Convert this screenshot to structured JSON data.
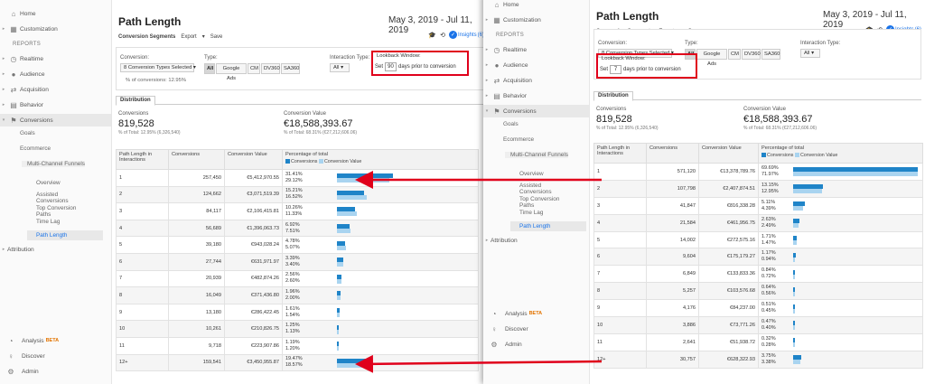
{
  "colors": {
    "accent": "#1a73e8",
    "bar_primary": "#1f84c8",
    "bar_secondary": "#a9d4f0",
    "highlight_red": "#e0001b",
    "beta_orange": "#e37400"
  },
  "panels": [
    {
      "sidebar": {
        "top_items": [
          {
            "label": "Home",
            "icon": "home-icon"
          },
          {
            "label": "Customization",
            "icon": "dashboard-icon"
          }
        ],
        "section_label": "REPORTS",
        "report_items": [
          {
            "label": "Realtime",
            "icon": "clock-icon"
          },
          {
            "label": "Audience",
            "icon": "person-icon"
          },
          {
            "label": "Acquisition",
            "icon": "acquisition-icon"
          },
          {
            "label": "Behavior",
            "icon": "behavior-icon"
          },
          {
            "label": "Conversions",
            "icon": "flag-icon"
          }
        ],
        "conversion_children": [
          "Goals",
          "Ecommerce",
          "Multi-Channel Funnels"
        ],
        "mcf_children": [
          "Overview",
          "Assisted Conversions",
          "Top Conversion Paths",
          "Time Lag",
          "Path Length"
        ],
        "after_item": "Attribution",
        "footer": [
          {
            "label": "Analysis",
            "badge": "BETA",
            "icon": "analysis-icon"
          },
          {
            "label": "Discover",
            "icon": "lightbulb-icon"
          },
          {
            "label": "Admin",
            "icon": "gear-icon"
          }
        ]
      },
      "report": {
        "title": "Path Length",
        "date_range": "May 3, 2019 - Jul 11, 2019",
        "toolbar": {
          "segments": "Conversion Segments",
          "export": "Export",
          "save": "Save",
          "insights": "Insights",
          "insights_count": "6"
        },
        "filters": {
          "conversion_label": "Conversion:",
          "conversion_value": "8 Conversion Types Selected",
          "pct_conversions": "% of conversions: 12.95%",
          "type_label": "Type:",
          "type_buttons": [
            "All",
            "Google Ads",
            "CM",
            "DV360",
            "SA360"
          ],
          "interaction_label": "Interaction Type:",
          "interaction_value": "All",
          "lookback_label": "Lookback Window:",
          "lookback_set": "Set",
          "lookback_days": "90",
          "lookback_suffix": "days prior to conversion"
        },
        "tab": "Distribution",
        "scorecards": [
          {
            "label": "Conversions",
            "value": "819,528",
            "sub": "% of Total: 12.95% (6,326,540)"
          },
          {
            "label": "Conversion Value",
            "value": "€18,588,393.67",
            "sub": "% of Total: 68.31% (€27,212,606.06)"
          }
        ],
        "table": {
          "headers": [
            "Path Length in Interactions",
            "Conversions",
            "Conversion Value",
            "Percentage of total"
          ],
          "legend": [
            "Conversions",
            "Conversion Value"
          ],
          "rows": [
            {
              "len": "1",
              "conv": "257,450",
              "value": "€5,412,970.55",
              "p1": "31.41%",
              "p2": "29.12%",
              "f1": 0.3141,
              "f2": 0.2912
            },
            {
              "len": "2",
              "conv": "124,662",
              "value": "€3,071,519.39",
              "p1": "15.21%",
              "p2": "16.52%",
              "f1": 0.1521,
              "f2": 0.1652
            },
            {
              "len": "3",
              "conv": "84,117",
              "value": "€2,106,415.81",
              "p1": "10.26%",
              "p2": "11.33%",
              "f1": 0.1026,
              "f2": 0.1133
            },
            {
              "len": "4",
              "conv": "56,689",
              "value": "€1,396,063.73",
              "p1": "6.92%",
              "p2": "7.51%",
              "f1": 0.0692,
              "f2": 0.0751
            },
            {
              "len": "5",
              "conv": "39,180",
              "value": "€943,028.24",
              "p1": "4.78%",
              "p2": "5.07%",
              "f1": 0.0478,
              "f2": 0.0507
            },
            {
              "len": "6",
              "conv": "27,744",
              "value": "€631,971.97",
              "p1": "3.39%",
              "p2": "3.40%",
              "f1": 0.0339,
              "f2": 0.034
            },
            {
              "len": "7",
              "conv": "20,939",
              "value": "€482,874.26",
              "p1": "2.56%",
              "p2": "2.60%",
              "f1": 0.0256,
              "f2": 0.026
            },
            {
              "len": "8",
              "conv": "16,049",
              "value": "€371,436.80",
              "p1": "1.96%",
              "p2": "2.00%",
              "f1": 0.0196,
              "f2": 0.02
            },
            {
              "len": "9",
              "conv": "13,180",
              "value": "€286,422.45",
              "p1": "1.61%",
              "p2": "1.54%",
              "f1": 0.0161,
              "f2": 0.0154
            },
            {
              "len": "10",
              "conv": "10,261",
              "value": "€210,826.75",
              "p1": "1.25%",
              "p2": "1.13%",
              "f1": 0.0125,
              "f2": 0.0113
            },
            {
              "len": "11",
              "conv": "9,718",
              "value": "€223,907.86",
              "p1": "1.19%",
              "p2": "1.20%",
              "f1": 0.0119,
              "f2": 0.012
            },
            {
              "len": "12+",
              "conv": "159,541",
              "value": "€3,450,955.87",
              "p1": "19.47%",
              "p2": "18.57%",
              "f1": 0.1947,
              "f2": 0.1857
            }
          ]
        }
      }
    },
    {
      "sidebar": {
        "top_items": [
          {
            "label": "Home",
            "icon": "home-icon"
          },
          {
            "label": "Customization",
            "icon": "dashboard-icon"
          }
        ],
        "section_label": "REPORTS",
        "report_items": [
          {
            "label": "Realtime",
            "icon": "clock-icon"
          },
          {
            "label": "Audience",
            "icon": "person-icon"
          },
          {
            "label": "Acquisition",
            "icon": "acquisition-icon"
          },
          {
            "label": "Behavior",
            "icon": "behavior-icon"
          },
          {
            "label": "Conversions",
            "icon": "flag-icon"
          }
        ],
        "conversion_children": [
          "Goals",
          "Ecommerce",
          "Multi-Channel Funnels"
        ],
        "mcf_children": [
          "Overview",
          "Assisted Conversions",
          "Top Conversion Paths",
          "Time Lag",
          "Path Length"
        ],
        "after_item": "Attribution",
        "footer": [
          {
            "label": "Analysis",
            "badge": "BETA",
            "icon": "analysis-icon"
          },
          {
            "label": "Discover",
            "icon": "lightbulb-icon"
          },
          {
            "label": "Admin",
            "icon": "gear-icon"
          }
        ]
      },
      "report": {
        "title": "Path Length",
        "date_range": "May 3, 2019 - Jul 11, 2019",
        "toolbar": {
          "segments": "Conversion Segments",
          "export": "Export",
          "save": "Save",
          "insights": "Insights",
          "insights_count": "6"
        },
        "filters": {
          "conversion_label": "Conversion:",
          "conversion_value": "8 Conversion Types Selected",
          "pct_conversions": "",
          "type_label": "Type:",
          "type_buttons": [
            "All",
            "Google Ads",
            "CM",
            "DV360",
            "SA360"
          ],
          "interaction_label": "Interaction Type:",
          "interaction_value": "All",
          "lookback_label": "Lookback Window:",
          "lookback_set": "Set",
          "lookback_days": "7",
          "lookback_suffix": "days prior to conversion"
        },
        "tab": "Distribution",
        "scorecards": [
          {
            "label": "Conversions",
            "value": "819,528",
            "sub": "% of Total: 12.95% (6,326,540)"
          },
          {
            "label": "Conversion Value",
            "value": "€18,588,393.67",
            "sub": "% of Total: 68.31% (€27,212,606.06)"
          }
        ],
        "table": {
          "headers": [
            "Path Length in Interactions",
            "Conversions",
            "Conversion Value",
            "Percentage of total"
          ],
          "legend": [
            "Conversions",
            "Conversion Value"
          ],
          "rows": [
            {
              "len": "1",
              "conv": "571,120",
              "value": "€13,378,789.76",
              "p1": "69.69%",
              "p2": "71.97%",
              "f1": 0.6969,
              "f2": 0.7197
            },
            {
              "len": "2",
              "conv": "107,798",
              "value": "€2,407,874.51",
              "p1": "13.15%",
              "p2": "12.95%",
              "f1": 0.1315,
              "f2": 0.1295
            },
            {
              "len": "3",
              "conv": "41,847",
              "value": "€816,338.28",
              "p1": "5.11%",
              "p2": "4.39%",
              "f1": 0.0511,
              "f2": 0.0439
            },
            {
              "len": "4",
              "conv": "21,584",
              "value": "€461,956.75",
              "p1": "2.63%",
              "p2": "2.49%",
              "f1": 0.0263,
              "f2": 0.0249
            },
            {
              "len": "5",
              "conv": "14,002",
              "value": "€272,575.16",
              "p1": "1.71%",
              "p2": "1.47%",
              "f1": 0.0171,
              "f2": 0.0147
            },
            {
              "len": "6",
              "conv": "9,604",
              "value": "€175,179.27",
              "p1": "1.17%",
              "p2": "0.94%",
              "f1": 0.0117,
              "f2": 0.0094
            },
            {
              "len": "7",
              "conv": "6,849",
              "value": "€133,833.36",
              "p1": "0.84%",
              "p2": "0.72%",
              "f1": 0.0084,
              "f2": 0.0072
            },
            {
              "len": "8",
              "conv": "5,257",
              "value": "€103,576.68",
              "p1": "0.64%",
              "p2": "0.56%",
              "f1": 0.0064,
              "f2": 0.0056
            },
            {
              "len": "9",
              "conv": "4,176",
              "value": "€84,237.00",
              "p1": "0.51%",
              "p2": "0.45%",
              "f1": 0.0051,
              "f2": 0.0045
            },
            {
              "len": "10",
              "conv": "3,886",
              "value": "€73,771.26",
              "p1": "0.47%",
              "p2": "0.40%",
              "f1": 0.0047,
              "f2": 0.004
            },
            {
              "len": "11",
              "conv": "2,641",
              "value": "€51,938.72",
              "p1": "0.32%",
              "p2": "0.28%",
              "f1": 0.0032,
              "f2": 0.0028
            },
            {
              "len": "12+",
              "conv": "30,757",
              "value": "€628,322.93",
              "p1": "3.75%",
              "p2": "3.38%",
              "f1": 0.0375,
              "f2": 0.0338
            }
          ]
        }
      }
    }
  ]
}
